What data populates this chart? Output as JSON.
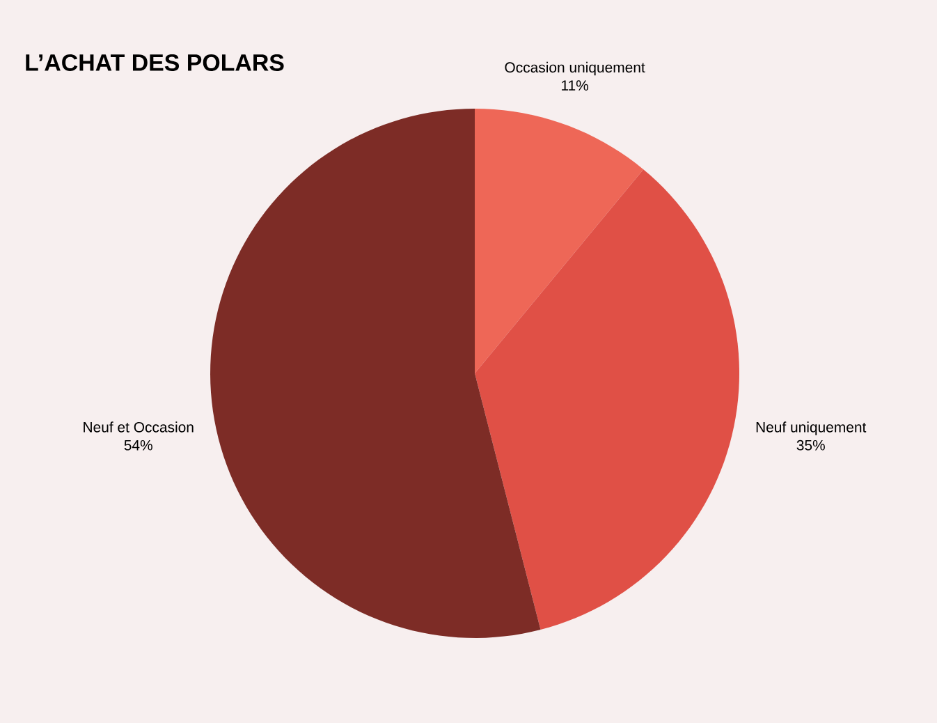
{
  "chart_data": {
    "type": "pie",
    "title": "L’ACHAT DES POLARS",
    "categories": [
      "Occasion uniquement",
      "Neuf uniquement",
      "Neuf et Occasion"
    ],
    "values": [
      11,
      35,
      54
    ],
    "colors": [
      "#ee6757",
      "#e05046",
      "#7d2c26"
    ],
    "value_labels": [
      "11%",
      "35%",
      "54%"
    ]
  }
}
